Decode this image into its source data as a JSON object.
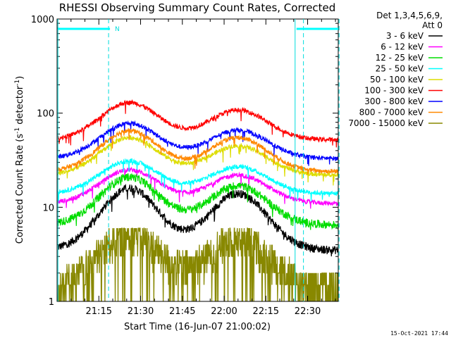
{
  "chart_data": {
    "type": "line",
    "title": "RHESSI Observing Summary Count Rates, Corrected",
    "xlabel": "Start Time (16-Jun-07 21:00:02)",
    "ylabel": "Corrected Count Rate (s⁻¹ detector⁻¹)",
    "y_scale": "log",
    "ylim": [
      1,
      1000
    ],
    "x_range_minutes": [
      0,
      101
    ],
    "x_tick_minutes": [
      15,
      30,
      45,
      60,
      75,
      90
    ],
    "x_tick_labels": [
      "21:15",
      "21:30",
      "21:45",
      "22:00",
      "22:15",
      "22:30"
    ],
    "y_ticks": [
      1,
      10,
      100,
      1000
    ],
    "y_tick_labels": [
      "1",
      "10",
      "100",
      "1000"
    ],
    "legend_header": [
      "Det 1,3,4,5,6,9,",
      "Att 0"
    ],
    "legend_position": "top-right",
    "night_marker_label": "N",
    "night_segments_minutes": [
      [
        0.3,
        19
      ],
      [
        86,
        101
      ]
    ],
    "vertical_markers": [
      {
        "minute": 0.3,
        "style": "solid"
      },
      {
        "minute": 18.5,
        "style": "dashed"
      },
      {
        "minute": 85.5,
        "style": "solid"
      },
      {
        "minute": 88.5,
        "style": "dashed"
      },
      {
        "minute": 101.3,
        "style": "dashed"
      }
    ],
    "data_minute_range": [
      0.3,
      101
    ],
    "peak_minutes": [
      26,
      65
    ],
    "series": [
      {
        "name": "3 - 6 keV",
        "color": "#000000",
        "base": 3.5,
        "peaks": [
          16,
          14
        ]
      },
      {
        "name": "6 - 12 keV",
        "color": "#ff00ff",
        "base": 11,
        "peaks": [
          25,
          22
        ]
      },
      {
        "name": "12 - 25 keV",
        "color": "#00dd00",
        "base": 6.5,
        "peaks": [
          21,
          17
        ]
      },
      {
        "name": "25 - 50 keV",
        "color": "#00ffff",
        "base": 14,
        "peaks": [
          31,
          27
        ]
      },
      {
        "name": "50 - 100 keV",
        "color": "#dddd00",
        "base": 22,
        "peaks": [
          55,
          45
        ]
      },
      {
        "name": "100 - 300 keV",
        "color": "#ff0000",
        "base": 52,
        "peaks": [
          130,
          108
        ]
      },
      {
        "name": "300 - 800 keV",
        "color": "#0000ff",
        "base": 33,
        "peaks": [
          78,
          66
        ]
      },
      {
        "name": "800 - 7000 keV",
        "color": "#ff8800",
        "base": 24,
        "peaks": [
          65,
          55
        ]
      },
      {
        "name": "7000 - 15000 keV",
        "color": "#888800",
        "base": 1.5,
        "peaks": [
          5.5,
          5
        ]
      }
    ]
  },
  "footer": {
    "timestamp": "15-Oct-2021 17:44"
  }
}
